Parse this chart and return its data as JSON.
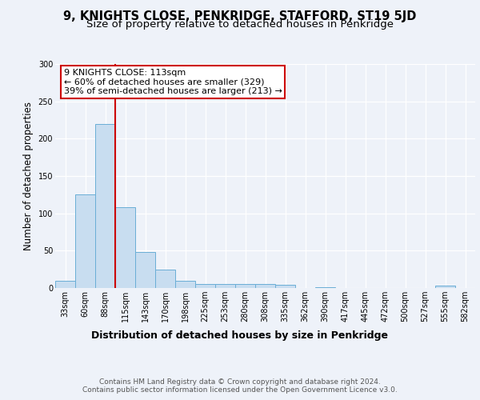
{
  "title": "9, KNIGHTS CLOSE, PENKRIDGE, STAFFORD, ST19 5JD",
  "subtitle": "Size of property relative to detached houses in Penkridge",
  "xlabel": "Distribution of detached houses by size in Penkridge",
  "ylabel": "Number of detached properties",
  "categories": [
    "33sqm",
    "60sqm",
    "88sqm",
    "115sqm",
    "143sqm",
    "170sqm",
    "198sqm",
    "225sqm",
    "253sqm",
    "280sqm",
    "308sqm",
    "335sqm",
    "362sqm",
    "390sqm",
    "417sqm",
    "445sqm",
    "472sqm",
    "500sqm",
    "527sqm",
    "555sqm",
    "582sqm"
  ],
  "values": [
    10,
    125,
    220,
    108,
    48,
    25,
    10,
    5,
    5,
    5,
    5,
    4,
    0,
    1,
    0,
    0,
    0,
    0,
    0,
    3,
    0
  ],
  "bar_color": "#c8ddf0",
  "bar_edge_color": "#6aaed6",
  "property_line_bin": 3,
  "property_line_color": "#cc0000",
  "annotation_text": "9 KNIGHTS CLOSE: 113sqm\n← 60% of detached houses are smaller (329)\n39% of semi-detached houses are larger (213) →",
  "annotation_box_color": "#ffffff",
  "annotation_box_edge": "#cc0000",
  "ylim": [
    0,
    300
  ],
  "yticks": [
    0,
    50,
    100,
    150,
    200,
    250,
    300
  ],
  "footer_text": "Contains HM Land Registry data © Crown copyright and database right 2024.\nContains public sector information licensed under the Open Government Licence v3.0.",
  "background_color": "#eef2f9",
  "plot_background": "#eef2f9",
  "grid_color": "#ffffff",
  "title_fontsize": 10.5,
  "subtitle_fontsize": 9.5,
  "xlabel_fontsize": 9,
  "ylabel_fontsize": 8.5,
  "tick_fontsize": 7,
  "annotation_fontsize": 8,
  "footer_fontsize": 6.5
}
